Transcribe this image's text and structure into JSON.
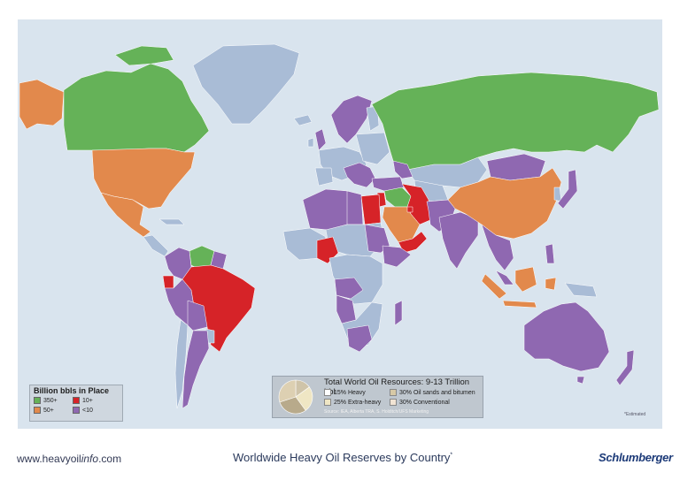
{
  "colors": {
    "ocean": "#d9e4ee",
    "other_land": "#a9bcd6",
    "tier_350": "#65b258",
    "tier_50": "#e2894c",
    "tier_10": "#d62328",
    "tier_lt10": "#8f68b1"
  },
  "legend": {
    "title": "Billion bbls in Place",
    "items": [
      {
        "label": "350+",
        "color": "#65b258"
      },
      {
        "label": "10+",
        "color": "#d62328"
      },
      {
        "label": "50+",
        "color": "#e2894c"
      },
      {
        "label": "<10",
        "color": "#8f68b1"
      }
    ]
  },
  "resources": {
    "title": "Total World Oil Resources: 9-13 Trillion bbl",
    "items": [
      {
        "label": "15% Heavy",
        "percent": 15,
        "color": "#cfc4a9"
      },
      {
        "label": "25% Extra-heavy",
        "percent": 25,
        "color": "#efe6c4"
      },
      {
        "label": "30% Oil sands and bitumen",
        "percent": 30,
        "color": "#b8aa8b"
      },
      {
        "label": "30% Conventional",
        "percent": 30,
        "color": "#ddd0b2"
      }
    ],
    "source": "Source: IEA, Alberta TRA, S. Holditch/UFS Marketing"
  },
  "note": "*Estimated",
  "footer": {
    "url_prefix": "www.heavyoil",
    "url_italic": "info",
    "url_suffix": ".com",
    "title": "Worldwide Heavy Oil Reserves by Country",
    "title_mark": "*",
    "brand": "Schlumberger"
  }
}
